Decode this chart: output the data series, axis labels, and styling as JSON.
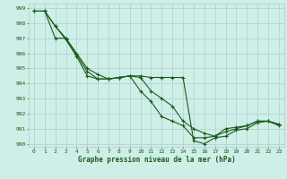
{
  "background_color": "#ceeee8",
  "grid_color": "#b0cccc",
  "line_color": "#1a5c1a",
  "marker_color": "#1a5c1a",
  "xlabel": "Graphe pression niveau de la mer (hPa)",
  "xlim": [
    -0.5,
    23.5
  ],
  "ylim": [
    989.8,
    999.3
  ],
  "yticks": [
    990,
    991,
    992,
    993,
    994,
    995,
    996,
    997,
    998,
    999
  ],
  "xticks": [
    0,
    1,
    2,
    3,
    4,
    5,
    6,
    7,
    8,
    9,
    10,
    11,
    12,
    13,
    14,
    15,
    16,
    17,
    18,
    19,
    20,
    21,
    22,
    23
  ],
  "series": [
    [
      998.8,
      998.8,
      997.8,
      997.0,
      996.0,
      995.0,
      994.6,
      994.3,
      994.4,
      994.5,
      993.5,
      992.8,
      991.8,
      991.5,
      991.2,
      990.4,
      990.4,
      990.5,
      990.8,
      991.0,
      991.2,
      991.5,
      991.5,
      991.3
    ],
    [
      998.8,
      998.8,
      997.8,
      996.9,
      995.8,
      994.5,
      994.3,
      994.3,
      994.4,
      994.5,
      994.4,
      993.5,
      993.0,
      992.5,
      991.5,
      991.0,
      990.7,
      990.5,
      991.0,
      991.1,
      991.2,
      991.5,
      991.5,
      991.3
    ],
    [
      998.8,
      998.8,
      997.0,
      997.0,
      995.9,
      994.8,
      994.3,
      994.3,
      994.4,
      994.5,
      994.5,
      994.4,
      994.4,
      994.4,
      994.4,
      990.2,
      990.0,
      990.4,
      990.5,
      990.9,
      991.0,
      991.4,
      991.5,
      991.2
    ]
  ]
}
